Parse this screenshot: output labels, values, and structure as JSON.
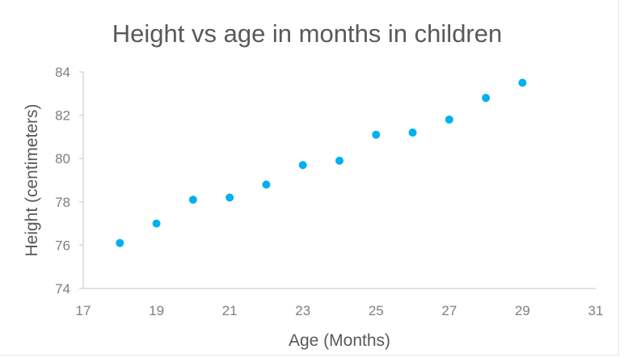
{
  "chart_data": {
    "type": "scatter",
    "title": "Height vs age in months in children",
    "xlabel": "Age (Months)",
    "ylabel": "Height (centimeters)",
    "xlim": [
      17,
      31
    ],
    "ylim": [
      74,
      84
    ],
    "xticks": [
      "17",
      "19",
      "21",
      "23",
      "25",
      "27",
      "29",
      "31"
    ],
    "yticks": [
      "74",
      "76",
      "78",
      "80",
      "82",
      "84"
    ],
    "grid": false,
    "legend": "none",
    "marker_color": "#00b0f0",
    "axis_color": "#d9d9d9",
    "series": [
      {
        "points": [
          {
            "x": 18,
            "y": 76.1
          },
          {
            "x": 19,
            "y": 77.0
          },
          {
            "x": 20,
            "y": 78.1
          },
          {
            "x": 21,
            "y": 78.2
          },
          {
            "x": 22,
            "y": 78.8
          },
          {
            "x": 23,
            "y": 79.7
          },
          {
            "x": 24,
            "y": 79.9
          },
          {
            "x": 25,
            "y": 81.1
          },
          {
            "x": 26,
            "y": 81.2
          },
          {
            "x": 27,
            "y": 81.8
          },
          {
            "x": 28,
            "y": 82.8
          },
          {
            "x": 29,
            "y": 83.5
          }
        ]
      }
    ]
  }
}
